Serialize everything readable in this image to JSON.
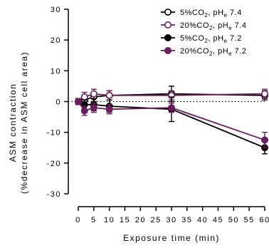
{
  "chart_data": {
    "type": "line",
    "xlabel": "Exposure time (min)",
    "ylabel_line1": "ASM contraction",
    "ylabel_line2": "(%decrease in ASM cell area)",
    "xlim": [
      0,
      60
    ],
    "ylim": [
      -30,
      30
    ],
    "x_ticks": [
      0,
      5,
      10,
      15,
      20,
      25,
      30,
      35,
      40,
      45,
      50,
      55,
      60
    ],
    "y_ticks": [
      30,
      20,
      10,
      0,
      -10,
      -20,
      -30
    ],
    "x_tick_labels": [
      "0",
      "5",
      "10",
      "15",
      "20",
      "25",
      "30",
      "35",
      "40",
      "45",
      "50",
      "55",
      "60"
    ],
    "y_tick_labels": [
      "30",
      "20",
      "10",
      "0",
      "-10",
      "-20",
      "-30"
    ],
    "baseline": {
      "y": 0,
      "style": "dotted"
    },
    "grid": false,
    "legend_position": "top-right",
    "series": [
      {
        "name": "5%CO2, pHe 7.4",
        "legend_parts": {
          "a": "5%CO",
          "sub1": "2",
          "b": ", pH",
          "sub2": "e",
          "c": " 7.4"
        },
        "color": "#000000",
        "marker": "open-circle",
        "x": [
          0,
          2,
          5,
          10,
          30,
          60
        ],
        "y": [
          0,
          0.5,
          1.5,
          2.0,
          2.5,
          2.0
        ],
        "err": [
          1.0,
          1.5,
          1.5,
          1.5,
          2.5,
          1.5
        ]
      },
      {
        "name": "20%CO2, pHe 7.4",
        "legend_parts": {
          "a": "20%CO",
          "sub1": "2",
          "b": ", pH",
          "sub2": "e",
          "c": " 7.4"
        },
        "color": "#6b1f5e",
        "marker": "open-circle",
        "x": [
          0,
          2,
          5,
          10,
          30,
          60
        ],
        "y": [
          0,
          1.5,
          2.5,
          2.0,
          2.0,
          2.5
        ],
        "err": [
          1.0,
          1.5,
          1.5,
          1.5,
          1.5,
          1.5
        ]
      },
      {
        "name": "5%CO2, pHe 7.2",
        "legend_parts": {
          "a": "5%CO",
          "sub1": "2",
          "b": ", pH",
          "sub2": "e",
          "c": " 7.2"
        },
        "color": "#000000",
        "marker": "filled-circle",
        "x": [
          0,
          2,
          5,
          10,
          30,
          60
        ],
        "y": [
          0,
          -1.0,
          -1.0,
          -1.5,
          -2.5,
          -15.0
        ],
        "err": [
          1.0,
          1.5,
          2.0,
          2.0,
          4.0,
          2.0
        ]
      },
      {
        "name": "20%CO2, pHe 7.2",
        "legend_parts": {
          "a": "20%CO",
          "sub1": "2",
          "b": ", pH",
          "sub2": "e",
          "c": " 7.2"
        },
        "color": "#6b1f5e",
        "marker": "filled-circle",
        "x": [
          0,
          2,
          5,
          10,
          30,
          60
        ],
        "y": [
          0,
          -3.0,
          -2.0,
          -2.5,
          -2.0,
          -12.5
        ],
        "err": [
          1.0,
          1.5,
          1.5,
          1.5,
          1.5,
          2.5
        ]
      }
    ]
  }
}
